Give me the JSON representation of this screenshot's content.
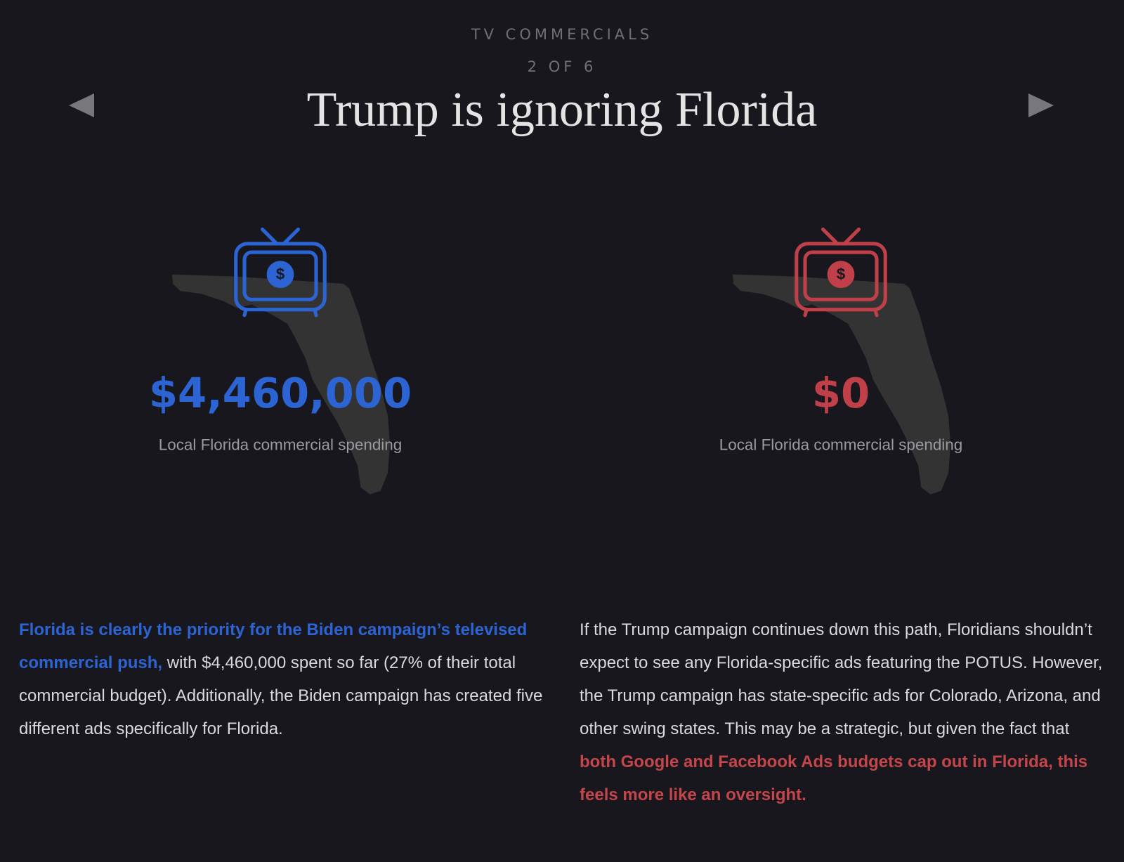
{
  "header": {
    "section": "TV COMMERCIALS",
    "counter": "2 OF 6",
    "title": "Trump is ignoring Florida"
  },
  "panels": [
    {
      "icon_symbol": "$",
      "amount": "$4,460,000",
      "caption": "Local Florida commercial spending"
    },
    {
      "icon_symbol": "$",
      "amount": "$0",
      "caption": "Local Florida commercial spending"
    }
  ],
  "paragraphs": [
    {
      "highlight": "Florida is clearly the priority for the Biden campaign’s televised commercial push,",
      "text": "with $4,460,000 spent so far (27% of their total commercial budget). Additionally, the Biden campaign has created five different ads specifically for Florida."
    },
    {
      "text": "If the Trump campaign continues down this path, Floridians shouldn’t expect to see any Florida-specific ads featuring the POTUS. However, the Trump campaign has state-specific ads for Colorado, Arizona, and other swing states. This may be a strategic, but given the fact that",
      "highlight": "both Google and Facebook Ads budgets cap out in Florida, this feels more like an oversight."
    }
  ]
}
